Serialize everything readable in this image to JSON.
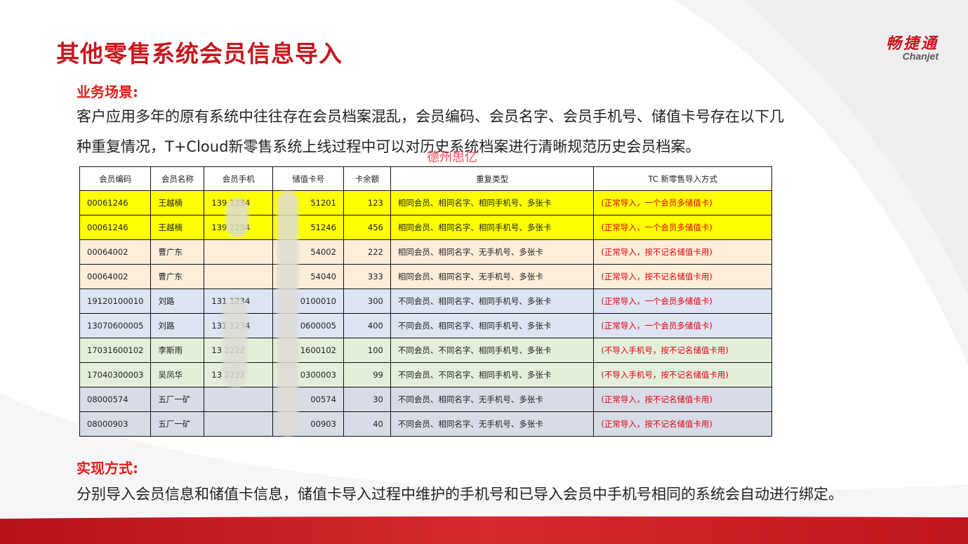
{
  "header": {
    "title": "其他零售系统会员信息导入",
    "logo_cn": "畅捷通",
    "logo_en": "Chanjet"
  },
  "scenario": {
    "label": "业务场景:",
    "line1": "客户应用多年的原有系统中往往存在会员档案混乱，会员编码、会员名字、会员手机号、储值卡号存在以下几",
    "line2": "种重复情况，T+Cloud新零售系统上线过程中可以对历史系统档案进行清晰规范历史会员档案。"
  },
  "watermark": "德州思亿",
  "table": {
    "headers": [
      "会员编码",
      "会员名称",
      "会员手机",
      "储值卡号",
      "卡余额",
      "重复类型",
      "TC 新零售导入方式"
    ],
    "rows": [
      {
        "style": "yellow",
        "code": "00061246",
        "name": "王越楠",
        "phone": "139     1234",
        "card": "51201",
        "balance": "123",
        "dup": "相同会员、相同名字、相同手机号、多张卡",
        "method": "(正常导入，一个会员多储值卡)"
      },
      {
        "style": "yellow",
        "code": "00061246",
        "name": "王越楠",
        "phone": "139     1234",
        "card": "51246",
        "balance": "456",
        "dup": "相同会员、相同名字、相同手机号、多张卡",
        "method": "(正常导入，一个会员多储值卡)"
      },
      {
        "style": "peach",
        "code": "00064002",
        "name": "曹广东",
        "phone": "",
        "card": "54002",
        "balance": "222",
        "dup": "相同会员、相同名字、无手机号、多张卡",
        "method": "(正常导入，按不记名储值卡用)"
      },
      {
        "style": "peach",
        "code": "00064002",
        "name": "曹广东",
        "phone": "",
        "card": "54040",
        "balance": "333",
        "dup": "相同会员、相同名字、无手机号、多张卡",
        "method": "(正常导入，按不记名储值卡用)"
      },
      {
        "style": "blue",
        "code": "19120100010",
        "name": "刘路",
        "phone": "131     1234",
        "card": "0100010",
        "balance": "300",
        "dup": "不同会员、相同名字、相同手机号、多张卡",
        "method": "(正常导入，一个会员多储值卡)"
      },
      {
        "style": "blue",
        "code": "13070600005",
        "name": "刘路",
        "phone": "131     1234",
        "card": "0600005",
        "balance": "400",
        "dup": "不同会员、相同名字、相同手机号、多张卡",
        "method": "(正常导入，一个会员多储值卡)"
      },
      {
        "style": "green",
        "code": "17031600102",
        "name": "李斯雨",
        "phone": "13     2222",
        "card": "1600102",
        "balance": "100",
        "dup": "不同会员、不同名字、相同手机号、多张卡",
        "method": "(不导入手机号，按不记名储值卡用)"
      },
      {
        "style": "green",
        "code": "17040300003",
        "name": "吴凤华",
        "phone": "13     2222",
        "card": "0300003",
        "balance": "99",
        "dup": "不同会员、不同名字、相同手机号、多张卡",
        "method": "(不导入手机号，按不记名储值卡用)"
      },
      {
        "style": "gray",
        "code": "08000574",
        "name": "五厂一矿",
        "phone": "",
        "card": "00574",
        "balance": "30",
        "dup": "不同会员、相同名字、无手机号、多张卡",
        "method": "(正常导入，按不记名储值卡用)"
      },
      {
        "style": "gray",
        "code": "08000903",
        "name": "五厂一矿",
        "phone": "",
        "card": "00903",
        "balance": "40",
        "dup": "不同会员、相同名字、无手机号、多张卡",
        "method": "(正常导入，按不记名储值卡用)"
      }
    ]
  },
  "implementation": {
    "label": "实现方式:",
    "text": "分别导入会员信息和储值卡信息，储值卡导入过程中维护的手机号和已导入会员中手机号相同的系统会自动进行绑定。"
  },
  "colors": {
    "accent": "#c8161d",
    "band": "#c8161d"
  }
}
